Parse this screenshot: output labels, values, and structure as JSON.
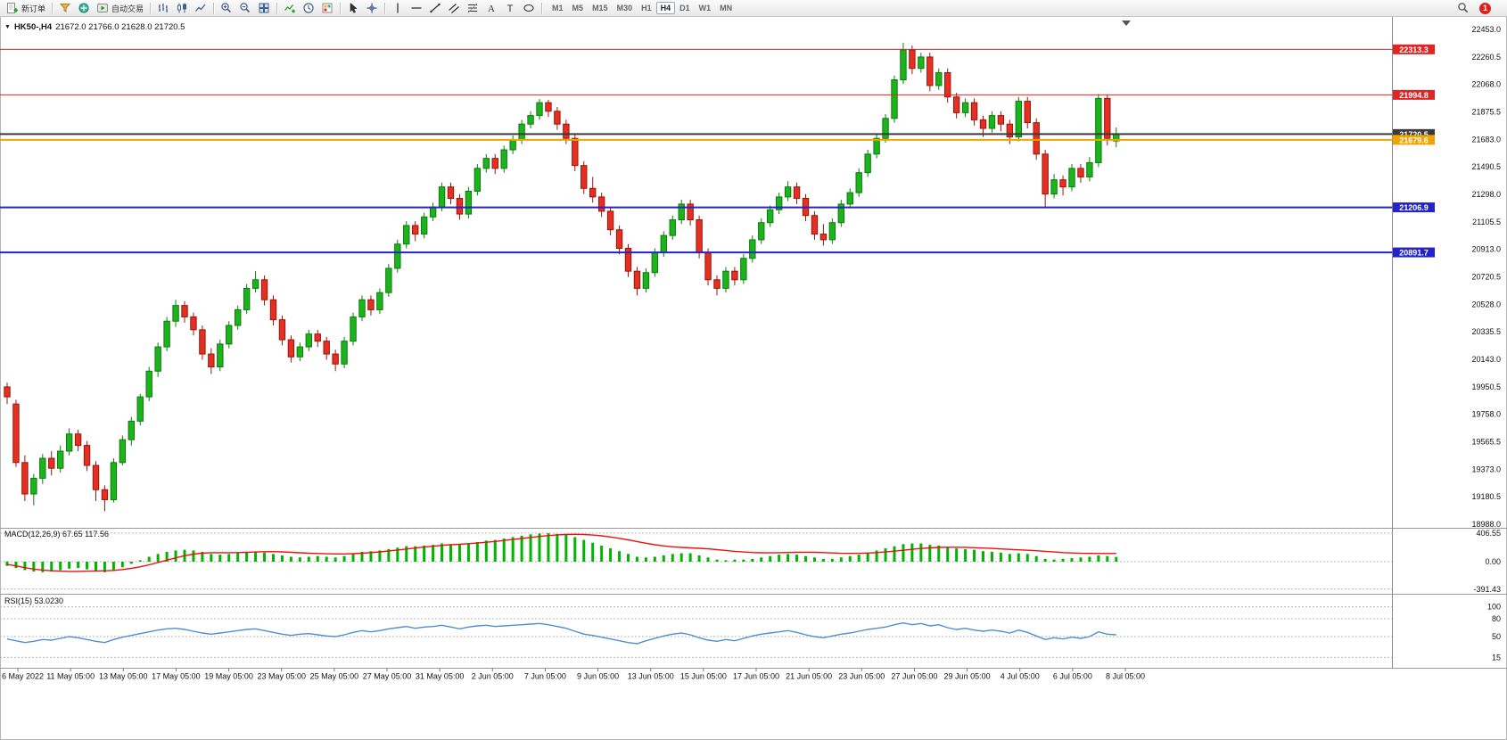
{
  "toolbar": {
    "new_order_label": "新订单",
    "autotrade_label": "自动交易",
    "timeframes": [
      "M1",
      "M5",
      "M15",
      "M30",
      "H1",
      "H4",
      "D1",
      "W1",
      "MN"
    ],
    "active_timeframe": "H4",
    "notification_count": "1",
    "icon_names": [
      "new-order",
      "market-watch",
      "navigator",
      "autotrade",
      "bar-chart",
      "candlestick-chart",
      "line-chart",
      "zoom-in",
      "zoom-out",
      "tile-windows",
      "indicators",
      "periods",
      "templates",
      "cursor",
      "crosshair",
      "vertical-line",
      "horizontal-line",
      "trendline",
      "equidistant-channel",
      "fibonacci",
      "text",
      "arrows",
      "shapes",
      "search",
      "notification"
    ]
  },
  "chart": {
    "symbol_period": "HK50-,H4",
    "ohlc_text": "21672.0 21766.0 21628.0 21720.5"
  },
  "indicators": {
    "macd": {
      "name": "MACD(12,26,9)",
      "value1": "67.65",
      "value2": "117.56"
    },
    "rsi": {
      "name": "RSI(15)",
      "value": "53.0230"
    }
  },
  "chart_data": [
    {
      "type": "candlestick",
      "symbol": "HK50-",
      "timeframe": "H4",
      "current_ohlc": {
        "open": 21672.0,
        "high": 21766.0,
        "low": 21628.0,
        "close": 21720.5
      },
      "y_axis": {
        "top": 22453.0,
        "bottom": 18988.0,
        "step": 192.5
      },
      "y_labels": [
        "22453.0",
        "22260.5",
        "22068.0",
        "21875.5",
        "21683.0",
        "21490.5",
        "21298.0",
        "21105.5",
        "20913.0",
        "20720.5",
        "20528.0",
        "20335.5",
        "20143.0",
        "19950.5",
        "19758.0",
        "19565.5",
        "19373.0",
        "19180.5",
        "18988.0"
      ],
      "x_labels": [
        "6 May 2022",
        "11 May 05:00",
        "13 May 05:00",
        "17 May 05:00",
        "19 May 05:00",
        "23 May 05:00",
        "25 May 05:00",
        "27 May 05:00",
        "31 May 05:00",
        "2 Jun 05:00",
        "7 Jun 05:00",
        "9 Jun 05:00",
        "13 Jun 05:00",
        "15 Jun 05:00",
        "17 Jun 05:00",
        "21 Jun 05:00",
        "23 Jun 05:00",
        "27 Jun 05:00",
        "29 Jun 05:00",
        "4 Jul 05:00",
        "6 Jul 05:00",
        "8 Jul 05:00"
      ],
      "h_lines": [
        {
          "price": 22313.3,
          "label": "22313.3",
          "color": "#e02525",
          "width": 1
        },
        {
          "price": 21994.8,
          "label": "21994.8",
          "color": "#e02525",
          "width": 1
        },
        {
          "price": 21720.5,
          "label": "21720.5",
          "color": "#3a3a3a",
          "width": 2
        },
        {
          "price": 21679.6,
          "label": "21679.6",
          "color": "#efa400",
          "width": 2
        },
        {
          "price": 21206.9,
          "label": "21206.9",
          "color": "#2323c8",
          "width": 2
        },
        {
          "price": 20891.7,
          "label": "20891.7",
          "color": "#2323c8",
          "width": 2
        }
      ],
      "colors": {
        "up_fill": "#1cb31c",
        "up_stroke": "#0b7d0b",
        "down_fill": "#e33022",
        "down_stroke": "#9c1408"
      },
      "candles": [
        [
          19950,
          19980,
          19830,
          19880
        ],
        [
          19830,
          19860,
          19390,
          19420
        ],
        [
          19420,
          19470,
          19150,
          19200
        ],
        [
          19200,
          19340,
          19120,
          19310
        ],
        [
          19310,
          19480,
          19270,
          19450
        ],
        [
          19450,
          19500,
          19330,
          19380
        ],
        [
          19380,
          19540,
          19350,
          19500
        ],
        [
          19500,
          19660,
          19470,
          19620
        ],
        [
          19620,
          19650,
          19500,
          19540
        ],
        [
          19540,
          19570,
          19360,
          19400
        ],
        [
          19400,
          19430,
          19150,
          19230
        ],
        [
          19230,
          19260,
          19080,
          19160
        ],
        [
          19160,
          19450,
          19140,
          19420
        ],
        [
          19420,
          19610,
          19400,
          19580
        ],
        [
          19580,
          19740,
          19540,
          19710
        ],
        [
          19710,
          19900,
          19680,
          19880
        ],
        [
          19880,
          20090,
          19850,
          20060
        ],
        [
          20060,
          20260,
          20020,
          20230
        ],
        [
          20230,
          20440,
          20200,
          20410
        ],
        [
          20410,
          20560,
          20370,
          20520
        ],
        [
          20520,
          20550,
          20400,
          20440
        ],
        [
          20440,
          20470,
          20310,
          20350
        ],
        [
          20350,
          20380,
          20140,
          20180
        ],
        [
          20180,
          20220,
          20040,
          20090
        ],
        [
          20090,
          20280,
          20060,
          20250
        ],
        [
          20250,
          20410,
          20220,
          20380
        ],
        [
          20380,
          20520,
          20350,
          20490
        ],
        [
          20490,
          20670,
          20460,
          20640
        ],
        [
          20640,
          20760,
          20610,
          20700
        ],
        [
          20700,
          20730,
          20520,
          20560
        ],
        [
          20560,
          20590,
          20380,
          20420
        ],
        [
          20420,
          20450,
          20240,
          20280
        ],
        [
          20280,
          20310,
          20120,
          20160
        ],
        [
          20160,
          20260,
          20130,
          20230
        ],
        [
          20230,
          20350,
          20200,
          20320
        ],
        [
          20320,
          20350,
          20230,
          20270
        ],
        [
          20270,
          20300,
          20140,
          20180
        ],
        [
          20180,
          20210,
          20060,
          20110
        ],
        [
          20110,
          20300,
          20080,
          20270
        ],
        [
          20270,
          20470,
          20240,
          20440
        ],
        [
          20440,
          20590,
          20410,
          20560
        ],
        [
          20560,
          20590,
          20450,
          20490
        ],
        [
          20490,
          20640,
          20460,
          20610
        ],
        [
          20610,
          20810,
          20580,
          20780
        ],
        [
          20780,
          20980,
          20750,
          20950
        ],
        [
          20950,
          21110,
          20920,
          21080
        ],
        [
          21080,
          21110,
          20970,
          21020
        ],
        [
          21020,
          21170,
          20990,
          21140
        ],
        [
          21140,
          21240,
          21110,
          21210
        ],
        [
          21210,
          21380,
          21180,
          21350
        ],
        [
          21350,
          21380,
          21230,
          21270
        ],
        [
          21270,
          21300,
          21120,
          21160
        ],
        [
          21160,
          21350,
          21130,
          21320
        ],
        [
          21320,
          21510,
          21290,
          21480
        ],
        [
          21480,
          21580,
          21450,
          21550
        ],
        [
          21550,
          21580,
          21440,
          21480
        ],
        [
          21480,
          21640,
          21450,
          21610
        ],
        [
          21610,
          21710,
          21580,
          21680
        ],
        [
          21680,
          21820,
          21650,
          21790
        ],
        [
          21790,
          21880,
          21760,
          21850
        ],
        [
          21850,
          21965,
          21820,
          21940
        ],
        [
          21940,
          21960,
          21840,
          21880
        ],
        [
          21880,
          21910,
          21750,
          21790
        ],
        [
          21790,
          21820,
          21650,
          21690
        ],
        [
          21690,
          21720,
          21460,
          21500
        ],
        [
          21500,
          21530,
          21300,
          21340
        ],
        [
          21340,
          21420,
          21240,
          21280
        ],
        [
          21280,
          21310,
          21140,
          21180
        ],
        [
          21180,
          21210,
          21010,
          21050
        ],
        [
          21050,
          21080,
          20880,
          20920
        ],
        [
          20920,
          20950,
          20720,
          20760
        ],
        [
          20760,
          20790,
          20590,
          20640
        ],
        [
          20640,
          20780,
          20610,
          20750
        ],
        [
          20750,
          20920,
          20720,
          20890
        ],
        [
          20890,
          21040,
          20860,
          21010
        ],
        [
          21010,
          21150,
          20980,
          21120
        ],
        [
          21120,
          21260,
          21090,
          21230
        ],
        [
          21230,
          21260,
          21080,
          21120
        ],
        [
          21120,
          21150,
          20850,
          20890
        ],
        [
          20890,
          20920,
          20660,
          20700
        ],
        [
          20700,
          20730,
          20590,
          20640
        ],
        [
          20640,
          20790,
          20610,
          20760
        ],
        [
          20760,
          20790,
          20660,
          20700
        ],
        [
          20700,
          20880,
          20670,
          20850
        ],
        [
          20850,
          21010,
          20820,
          20980
        ],
        [
          20980,
          21130,
          20950,
          21100
        ],
        [
          21100,
          21220,
          21070,
          21190
        ],
        [
          21190,
          21310,
          21160,
          21280
        ],
        [
          21280,
          21390,
          21250,
          21350
        ],
        [
          21350,
          21380,
          21230,
          21270
        ],
        [
          21270,
          21300,
          21110,
          21150
        ],
        [
          21150,
          21180,
          20980,
          21020
        ],
        [
          21020,
          21090,
          20940,
          20980
        ],
        [
          20980,
          21130,
          20950,
          21100
        ],
        [
          21100,
          21260,
          21070,
          21230
        ],
        [
          21230,
          21340,
          21200,
          21310
        ],
        [
          21310,
          21480,
          21280,
          21450
        ],
        [
          21450,
          21610,
          21420,
          21580
        ],
        [
          21580,
          21720,
          21550,
          21690
        ],
        [
          21690,
          21860,
          21660,
          21830
        ],
        [
          21830,
          22130,
          21800,
          22100
        ],
        [
          22100,
          22360,
          22070,
          22310
        ],
        [
          22310,
          22340,
          22140,
          22180
        ],
        [
          22180,
          22290,
          22150,
          22260
        ],
        [
          22260,
          22290,
          22020,
          22060
        ],
        [
          22060,
          22180,
          22030,
          22150
        ],
        [
          22150,
          22180,
          21940,
          21980
        ],
        [
          21980,
          22010,
          21830,
          21870
        ],
        [
          21870,
          21970,
          21840,
          21940
        ],
        [
          21940,
          21970,
          21780,
          21820
        ],
        [
          21820,
          21850,
          21700,
          21760
        ],
        [
          21760,
          21880,
          21730,
          21850
        ],
        [
          21850,
          21880,
          21740,
          21790
        ],
        [
          21790,
          21820,
          21650,
          21700
        ],
        [
          21700,
          21980,
          21670,
          21950
        ],
        [
          21950,
          21980,
          21760,
          21800
        ],
        [
          21800,
          21830,
          21540,
          21580
        ],
        [
          21580,
          21610,
          21200,
          21300
        ],
        [
          21300,
          21440,
          21270,
          21400
        ],
        [
          21400,
          21430,
          21290,
          21350
        ],
        [
          21350,
          21510,
          21320,
          21480
        ],
        [
          21480,
          21510,
          21380,
          21420
        ],
        [
          21420,
          21560,
          21390,
          21520
        ],
        [
          21520,
          22000,
          21490,
          21970
        ],
        [
          21970,
          21995,
          21640,
          21690
        ],
        [
          21672,
          21766,
          21628,
          21720.5
        ]
      ]
    },
    {
      "type": "macd",
      "label": "MACD(12,26,9) 67.65 117.56",
      "scale_labels": [
        "406.55",
        "0.00",
        "-391.43"
      ],
      "scale_values": [
        406.55,
        0,
        -391.43
      ],
      "hist_color": "#00b400",
      "signal_color": "#ee1111",
      "histogram": [
        -60,
        -90,
        -120,
        -140,
        -150,
        -140,
        -120,
        -100,
        -90,
        -110,
        -130,
        -150,
        -120,
        -80,
        -30,
        20,
        70,
        110,
        140,
        160,
        170,
        160,
        140,
        110,
        100,
        110,
        120,
        130,
        140,
        130,
        110,
        90,
        70,
        60,
        70,
        80,
        70,
        60,
        80,
        110,
        140,
        150,
        160,
        180,
        200,
        220,
        220,
        230,
        240,
        260,
        250,
        240,
        260,
        280,
        300,
        310,
        330,
        350,
        370,
        390,
        400,
        405,
        395,
        380,
        350,
        310,
        270,
        230,
        190,
        150,
        110,
        70,
        60,
        70,
        90,
        110,
        120,
        120,
        90,
        60,
        30,
        20,
        30,
        30,
        40,
        60,
        80,
        100,
        110,
        100,
        80,
        60,
        40,
        40,
        60,
        80,
        100,
        130,
        160,
        190,
        220,
        250,
        260,
        260,
        240,
        230,
        210,
        190,
        180,
        170,
        150,
        140,
        130,
        110,
        120,
        110,
        80,
        40,
        30,
        40,
        50,
        60,
        70,
        90,
        80,
        68
      ],
      "signal": [
        -40,
        -60,
        -85,
        -105,
        -120,
        -130,
        -135,
        -138,
        -138,
        -135,
        -132,
        -130,
        -125,
        -112,
        -95,
        -72,
        -45,
        -12,
        22,
        55,
        85,
        108,
        122,
        128,
        128,
        128,
        130,
        133,
        138,
        142,
        143,
        140,
        134,
        127,
        121,
        117,
        113,
        110,
        110,
        114,
        121,
        130,
        140,
        152,
        166,
        181,
        195,
        208,
        220,
        232,
        241,
        248,
        256,
        266,
        277,
        289,
        302,
        316,
        330,
        345,
        359,
        372,
        382,
        388,
        390,
        387,
        380,
        368,
        352,
        333,
        311,
        287,
        263,
        242,
        225,
        212,
        203,
        197,
        191,
        183,
        172,
        160,
        148,
        138,
        131,
        127,
        126,
        128,
        131,
        134,
        135,
        133,
        129,
        124,
        120,
        118,
        119,
        123,
        130,
        139,
        150,
        163,
        176,
        188,
        197,
        203,
        206,
        206,
        204,
        200,
        195,
        189,
        182,
        175,
        169,
        163,
        156,
        147,
        138,
        130,
        124,
        120,
        118,
        117,
        117,
        118
      ]
    },
    {
      "type": "rsi",
      "label": "RSI(15) 53.0230",
      "levels": [
        100,
        80,
        50,
        15
      ],
      "line_color": "#4f8fd0",
      "values": [
        46,
        43,
        40,
        42,
        45,
        44,
        47,
        50,
        48,
        45,
        42,
        40,
        45,
        49,
        52,
        55,
        58,
        61,
        63,
        64,
        62,
        59,
        56,
        54,
        56,
        58,
        60,
        62,
        63,
        60,
        57,
        54,
        52,
        54,
        55,
        53,
        51,
        50,
        53,
        57,
        60,
        58,
        60,
        63,
        65,
        67,
        64,
        66,
        67,
        69,
        66,
        63,
        66,
        68,
        69,
        67,
        68,
        69,
        70,
        71,
        72,
        70,
        67,
        64,
        59,
        54,
        52,
        49,
        46,
        43,
        40,
        38,
        43,
        47,
        51,
        54,
        56,
        53,
        48,
        44,
        42,
        45,
        43,
        47,
        51,
        54,
        56,
        58,
        60,
        57,
        53,
        50,
        48,
        51,
        54,
        56,
        59,
        62,
        64,
        66,
        70,
        73,
        70,
        72,
        68,
        70,
        65,
        62,
        64,
        61,
        59,
        61,
        59,
        56,
        61,
        57,
        51,
        45,
        48,
        46,
        49,
        47,
        50,
        58,
        54,
        53
      ]
    }
  ]
}
